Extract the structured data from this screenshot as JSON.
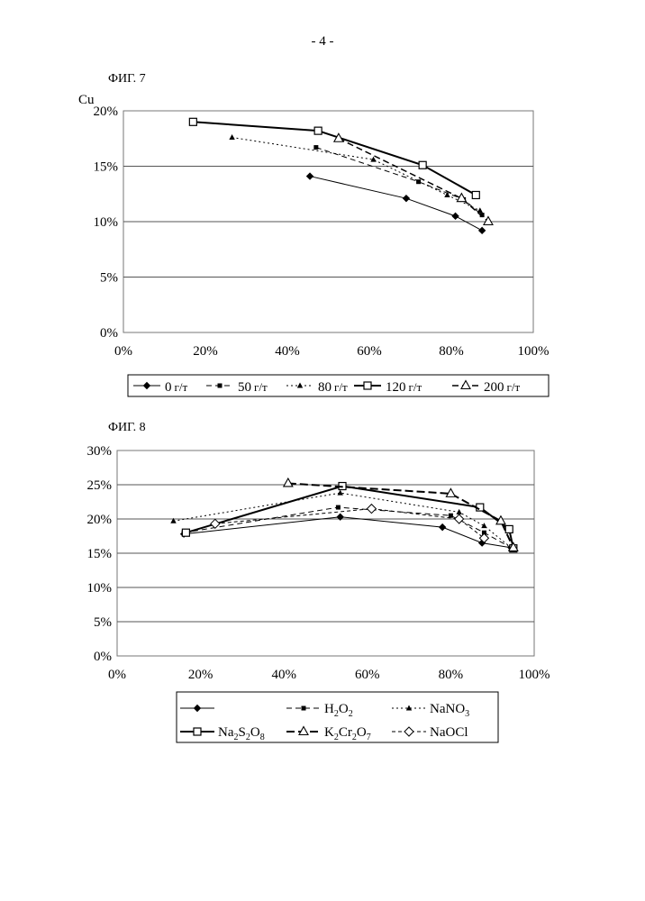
{
  "page": {
    "number": "- 4 -"
  },
  "chart_data": [
    {
      "type": "line",
      "title": "ФИГ. 7",
      "ylabel": "Cu",
      "xlabel": "",
      "xlim": [
        0,
        1
      ],
      "ylim": [
        0,
        0.2
      ],
      "grid": "horizontal",
      "x_tick_labels": [
        "0%",
        "20%",
        "40%",
        "60%",
        "80%",
        "100%"
      ],
      "y_tick_labels": [
        "0%",
        "5%",
        "10%",
        "15%",
        "20%"
      ],
      "legend_position": "bottom",
      "series": [
        {
          "name": "0 г/т",
          "num": "0",
          "unit": "г/т",
          "marker": "diamond-filled",
          "dash": "",
          "width": 1,
          "points": [
            [
              0.455,
              0.141
            ],
            [
              0.69,
              0.121
            ],
            [
              0.81,
              0.105
            ],
            [
              0.875,
              0.092
            ]
          ]
        },
        {
          "name": "50 г/т",
          "num": "50",
          "unit": "г/т",
          "marker": "square-filled",
          "dash": "6,4",
          "width": 1,
          "points": [
            [
              0.47,
              0.167
            ],
            [
              0.72,
              0.136
            ],
            [
              0.83,
              0.12
            ],
            [
              0.875,
              0.106
            ]
          ]
        },
        {
          "name": "80 г/т",
          "num": "80",
          "unit": "г/т",
          "marker": "triangle-filled",
          "dash": "2,3",
          "width": 1,
          "points": [
            [
              0.265,
              0.176
            ],
            [
              0.61,
              0.156
            ],
            [
              0.79,
              0.124
            ],
            [
              0.87,
              0.11
            ]
          ]
        },
        {
          "name": "120 г/т",
          "num": "120",
          "unit": "г/т",
          "marker": "square-open",
          "dash": "",
          "width": 2,
          "points": [
            [
              0.17,
              0.19
            ],
            [
              0.475,
              0.182
            ],
            [
              0.73,
              0.151
            ],
            [
              0.86,
              0.124
            ]
          ]
        },
        {
          "name": "200 г/т",
          "num": "200",
          "unit": "г/т",
          "marker": "triangle-open",
          "dash": "7,4",
          "width": 1.5,
          "points": [
            [
              0.525,
              0.175
            ],
            [
              0.825,
              0.121
            ],
            [
              0.89,
              0.1
            ]
          ]
        }
      ]
    },
    {
      "type": "line",
      "title": "ФИГ. 8",
      "ylabel": "",
      "xlabel": "",
      "xlim": [
        0,
        1
      ],
      "ylim": [
        0,
        0.3
      ],
      "grid": "horizontal",
      "x_tick_labels": [
        "0%",
        "20%",
        "40%",
        "60%",
        "80%",
        "100%"
      ],
      "y_tick_labels": [
        "0%",
        "5%",
        "10%",
        "15%",
        "20%",
        "25%",
        "30%"
      ],
      "legend_position": "bottom",
      "series": [
        {
          "name": "",
          "base": "",
          "marker": "diamond-filled",
          "dash": "",
          "width": 1,
          "points": [
            [
              0.16,
              0.178
            ],
            [
              0.535,
              0.203
            ],
            [
              0.78,
              0.188
            ],
            [
              0.875,
              0.165
            ],
            [
              0.945,
              0.158
            ]
          ]
        },
        {
          "name": "H2O2",
          "base": "H",
          "sub1": "2",
          "mid": "O",
          "sub2": "2",
          "marker": "square-filled",
          "dash": "6,4",
          "width": 1,
          "points": [
            [
              0.16,
              0.18
            ],
            [
              0.53,
              0.217
            ],
            [
              0.8,
              0.205
            ],
            [
              0.88,
              0.18
            ],
            [
              0.945,
              0.158
            ]
          ]
        },
        {
          "name": "NaNO3",
          "base": "NaNO",
          "sub1": "3",
          "marker": "triangle-filled",
          "dash": "2,3",
          "width": 1,
          "points": [
            [
              0.135,
              0.197
            ],
            [
              0.535,
              0.238
            ],
            [
              0.82,
              0.21
            ],
            [
              0.88,
              0.19
            ],
            [
              0.945,
              0.158
            ]
          ]
        },
        {
          "name": "Na2S2O8",
          "base": "Na",
          "sub1": "2",
          "mid": "S",
          "sub2": "2",
          "mid2": "O",
          "sub3": "8",
          "marker": "square-open",
          "dash": "",
          "width": 2,
          "points": [
            [
              0.165,
              0.18
            ],
            [
              0.54,
              0.248
            ],
            [
              0.87,
              0.217
            ],
            [
              0.94,
              0.185
            ],
            [
              0.95,
              0.157
            ]
          ]
        },
        {
          "name": "K2Cr2O7",
          "base": "K",
          "sub1": "2",
          "mid": "Cr",
          "sub2": "2",
          "mid2": "O",
          "sub3": "7",
          "marker": "triangle-open",
          "dash": "9,4",
          "width": 2,
          "points": [
            [
              0.41,
              0.252
            ],
            [
              0.8,
              0.237
            ],
            [
              0.92,
              0.197
            ],
            [
              0.95,
              0.158
            ]
          ]
        },
        {
          "name": "NaOCl",
          "base": "NaOCl",
          "marker": "diamond-open",
          "dash": "4,3",
          "width": 1,
          "points": [
            [
              0.235,
              0.193
            ],
            [
              0.61,
              0.215
            ],
            [
              0.82,
              0.2
            ],
            [
              0.88,
              0.172
            ]
          ]
        }
      ]
    }
  ]
}
